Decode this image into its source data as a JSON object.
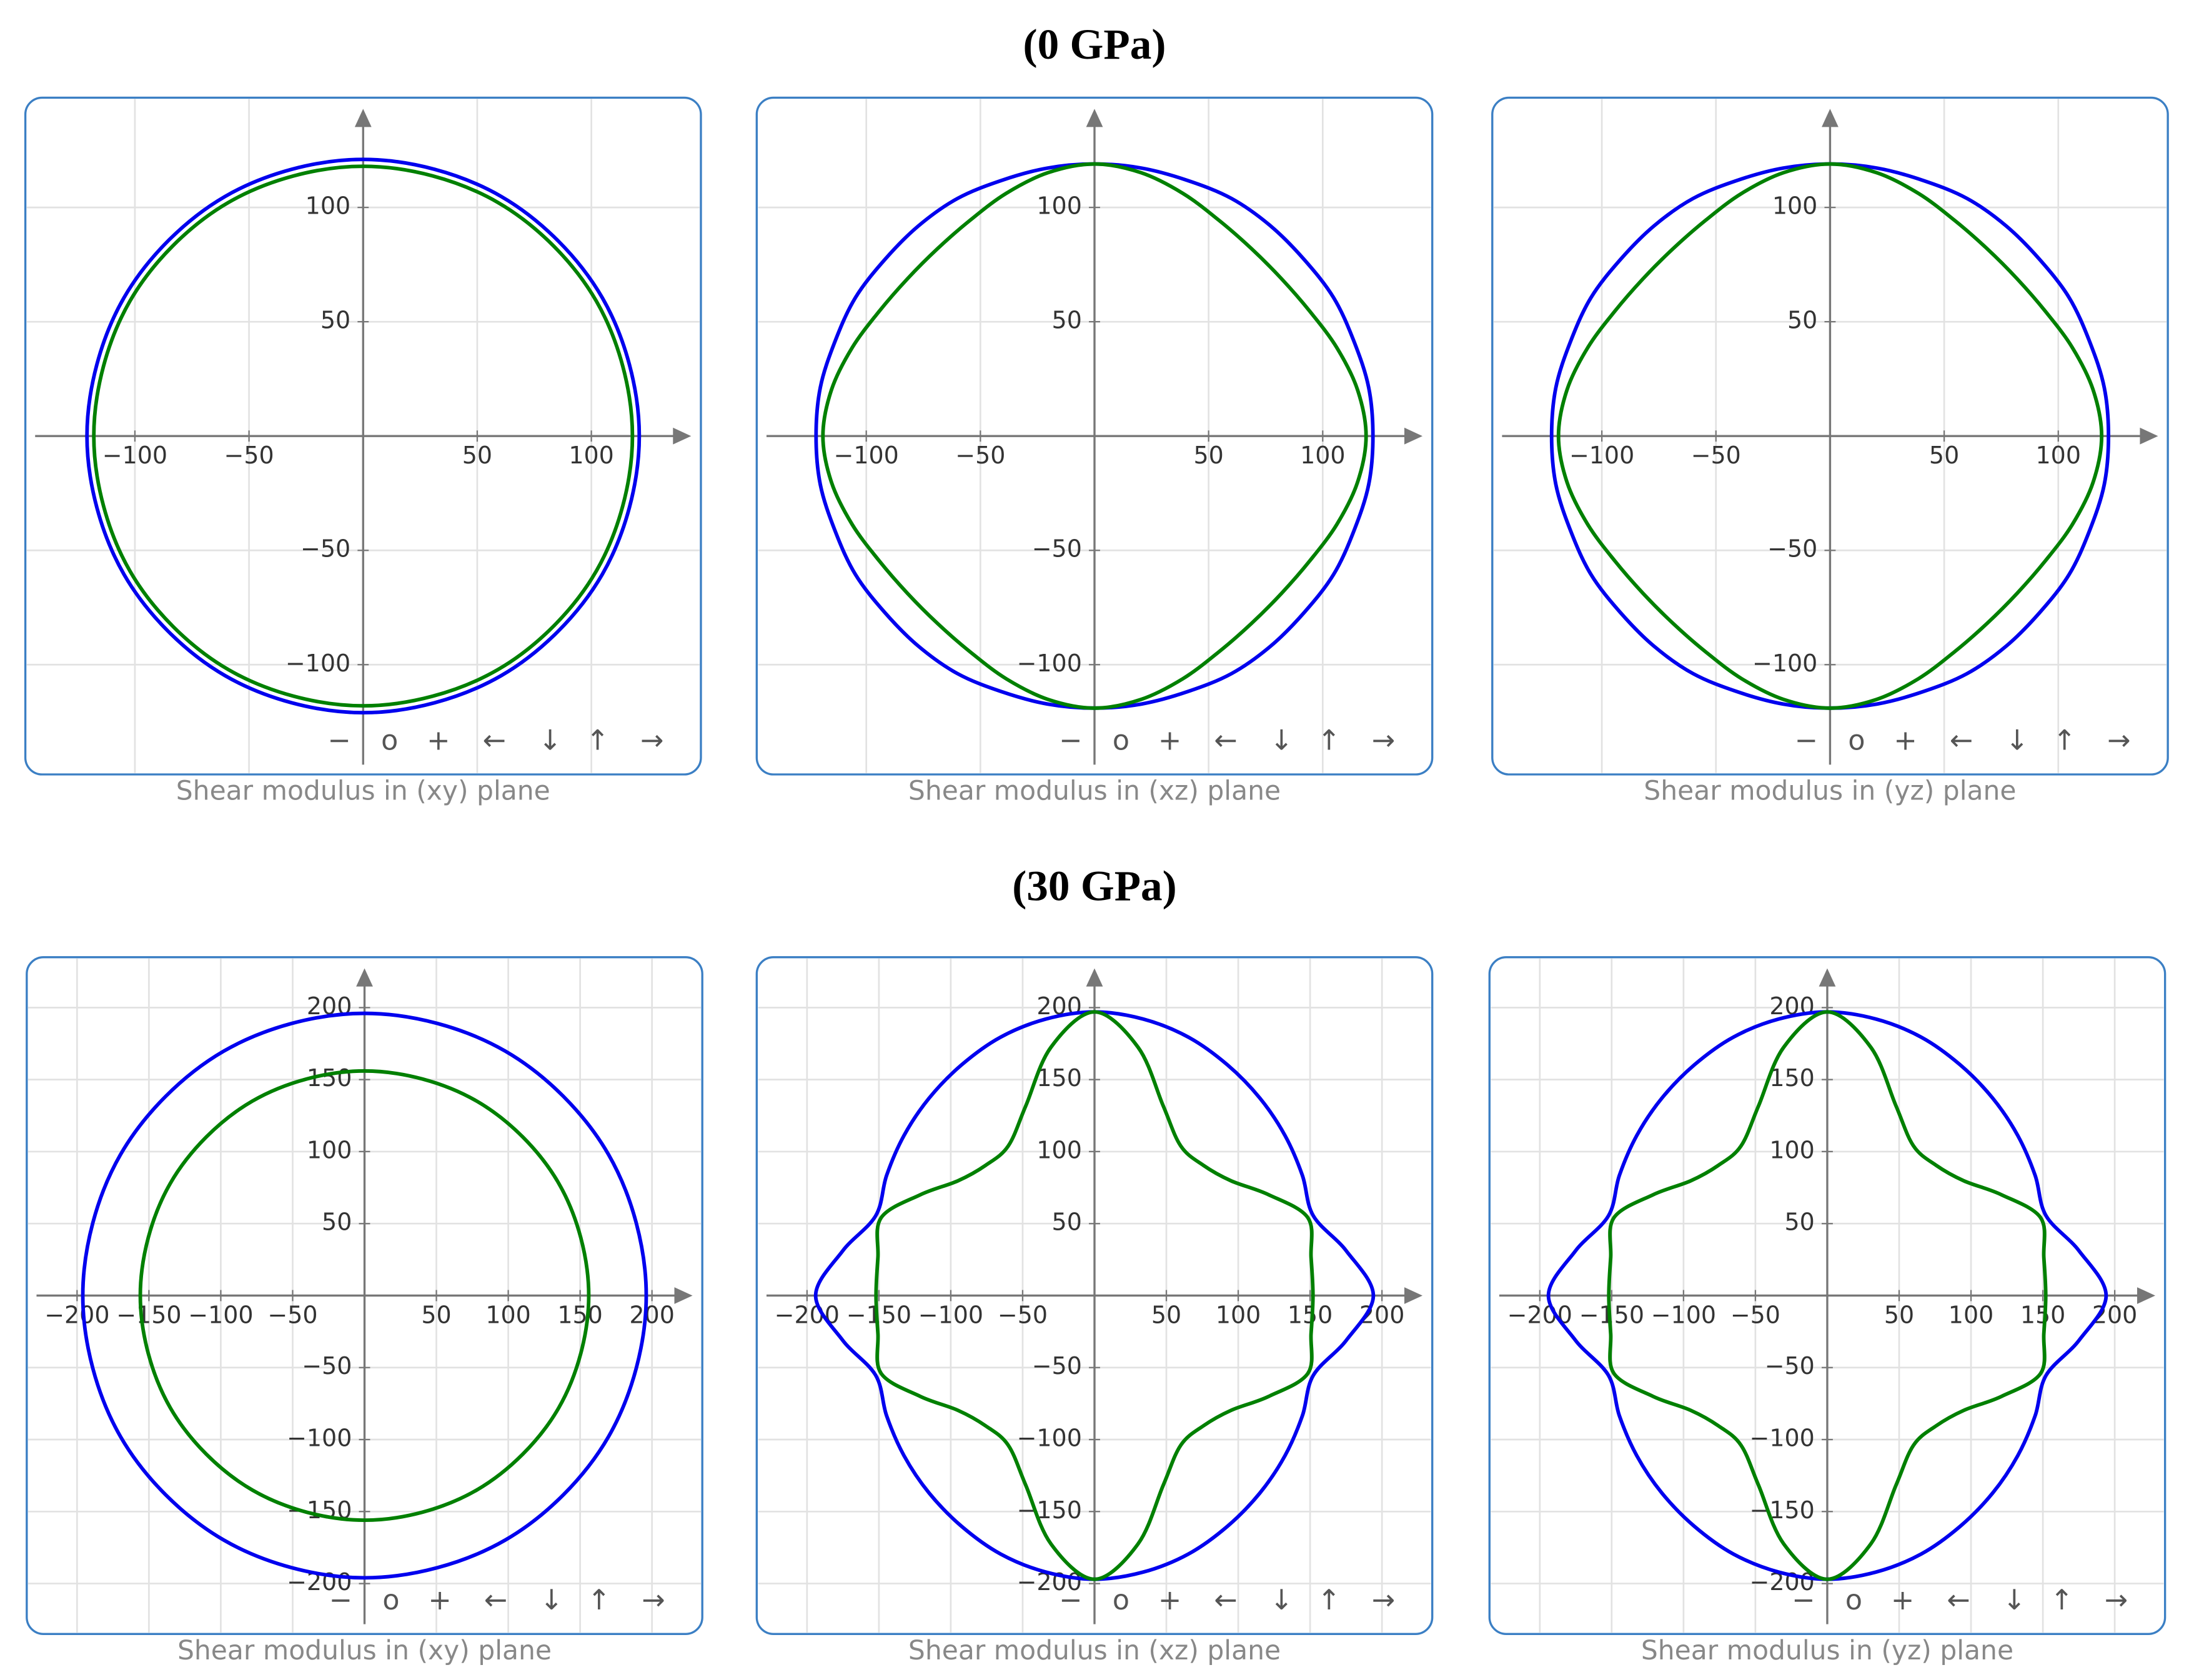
{
  "headings": [
    "(0 GPa)",
    "(30 GPa)"
  ],
  "controls": [
    "−",
    "o",
    "+",
    "←",
    "↓",
    "↑",
    "→"
  ],
  "chart_data": [
    {
      "type": "polar",
      "title": "Shear modulus in (xy) plane",
      "xlim": [
        -148,
        148
      ],
      "ylim": [
        -148,
        148
      ],
      "xticks": [
        {
          "value": -100,
          "label": "−100"
        },
        {
          "value": -50,
          "label": "−50"
        },
        50,
        100
      ],
      "yticks": [
        {
          "value": -100,
          "label": "−100"
        },
        {
          "value": -50,
          "label": "−50"
        },
        50,
        100
      ],
      "grid": true,
      "theta": [
        0,
        30,
        60,
        90,
        120,
        150,
        180,
        210,
        240,
        270,
        300,
        330
      ],
      "series": [
        {
          "color": "#0000ee",
          "values": [
            121,
            121,
            121,
            121,
            121,
            121,
            121,
            121,
            121,
            121,
            121,
            121
          ]
        },
        {
          "color": "#008000",
          "values": [
            118,
            118,
            118,
            118,
            118,
            118,
            118,
            118,
            118,
            118,
            118,
            118
          ]
        }
      ]
    },
    {
      "type": "polar",
      "title": "Shear modulus in (xz) plane",
      "xlim": [
        -148,
        148
      ],
      "ylim": [
        -148,
        148
      ],
      "xticks": [
        {
          "value": -100,
          "label": "−100"
        },
        {
          "value": -50,
          "label": "−50"
        },
        50,
        100
      ],
      "yticks": [
        {
          "value": -100,
          "label": "−100"
        },
        {
          "value": -50,
          "label": "−50"
        },
        50,
        100
      ],
      "grid": true,
      "theta": [
        0,
        10,
        20,
        30,
        40,
        50,
        60,
        70,
        80,
        90,
        100,
        110,
        120,
        130,
        140,
        150,
        160,
        170,
        180,
        190,
        200,
        210,
        220,
        230,
        240,
        250,
        260,
        270,
        280,
        290,
        300,
        310,
        320,
        330,
        340,
        350
      ],
      "series": [
        {
          "color": "#0000ee",
          "values": [
            122,
            122,
            121,
            121,
            120,
            120,
            120,
            119,
            119,
            119,
            119,
            119,
            120,
            120,
            120,
            121,
            121,
            122,
            122,
            122,
            121,
            121,
            120,
            120,
            120,
            119,
            119,
            119,
            119,
            119,
            120,
            120,
            120,
            121,
            121,
            122
          ]
        },
        {
          "color": "#008000",
          "values": [
            119,
            117,
            113,
            109,
            107,
            107,
            109,
            113,
            117,
            119,
            117,
            113,
            109,
            107,
            107,
            109,
            113,
            117,
            119,
            117,
            113,
            109,
            107,
            107,
            109,
            113,
            117,
            119,
            117,
            113,
            109,
            107,
            107,
            109,
            113,
            117
          ]
        }
      ]
    },
    {
      "type": "polar",
      "title": "Shear modulus in (yz) plane",
      "xlim": [
        -148,
        148
      ],
      "ylim": [
        -148,
        148
      ],
      "xticks": [
        {
          "value": -100,
          "label": "−100"
        },
        {
          "value": -50,
          "label": "−50"
        },
        50,
        100
      ],
      "yticks": [
        {
          "value": -100,
          "label": "−100"
        },
        {
          "value": -50,
          "label": "−50"
        },
        50,
        100
      ],
      "grid": true,
      "theta": [
        0,
        10,
        20,
        30,
        40,
        50,
        60,
        70,
        80,
        90,
        100,
        110,
        120,
        130,
        140,
        150,
        160,
        170,
        180,
        190,
        200,
        210,
        220,
        230,
        240,
        250,
        260,
        270,
        280,
        290,
        300,
        310,
        320,
        330,
        340,
        350
      ],
      "series": [
        {
          "color": "#0000ee",
          "values": [
            122,
            122,
            121,
            121,
            120,
            120,
            120,
            119,
            119,
            119,
            119,
            119,
            120,
            120,
            120,
            121,
            121,
            122,
            122,
            122,
            121,
            121,
            120,
            120,
            120,
            119,
            119,
            119,
            119,
            119,
            120,
            120,
            120,
            121,
            121,
            122
          ]
        },
        {
          "color": "#008000",
          "values": [
            119,
            117,
            113,
            109,
            107,
            107,
            109,
            113,
            117,
            119,
            117,
            113,
            109,
            107,
            107,
            109,
            113,
            117,
            119,
            117,
            113,
            109,
            107,
            107,
            109,
            113,
            117,
            119,
            117,
            113,
            109,
            107,
            107,
            109,
            113,
            117
          ]
        }
      ]
    },
    {
      "type": "polar",
      "title": "Shear modulus in (xy) plane",
      "xlim": [
        -235,
        235
      ],
      "ylim": [
        -235,
        235
      ],
      "xticks": [
        {
          "value": -200,
          "label": "−200"
        },
        {
          "value": -150,
          "label": "−150"
        },
        {
          "value": -100,
          "label": "−100"
        },
        {
          "value": -50,
          "label": "−50"
        },
        50,
        100,
        150,
        200
      ],
      "yticks": [
        {
          "value": -200,
          "label": "−200"
        },
        {
          "value": -150,
          "label": "−150"
        },
        {
          "value": -100,
          "label": "−100"
        },
        {
          "value": -50,
          "label": "−50"
        },
        50,
        100,
        150,
        200
      ],
      "grid": true,
      "theta": [
        0,
        30,
        60,
        90,
        120,
        150,
        180,
        210,
        240,
        270,
        300,
        330
      ],
      "series": [
        {
          "color": "#0000ee",
          "values": [
            196,
            196,
            196,
            196,
            196,
            196,
            196,
            196,
            196,
            196,
            196,
            196
          ]
        },
        {
          "color": "#008000",
          "values": [
            156,
            156,
            156,
            156,
            156,
            156,
            156,
            156,
            156,
            156,
            156,
            156
          ]
        }
      ]
    },
    {
      "type": "polar",
      "title": "Shear modulus in (xz) plane",
      "xlim": [
        -235,
        235
      ],
      "ylim": [
        -235,
        235
      ],
      "xticks": [
        {
          "value": -200,
          "label": "−200"
        },
        {
          "value": -150,
          "label": "−150"
        },
        {
          "value": -100,
          "label": "−100"
        },
        {
          "value": -50,
          "label": "−50"
        },
        50,
        100,
        150,
        200
      ],
      "yticks": [
        {
          "value": -200,
          "label": "−200"
        },
        {
          "value": -150,
          "label": "−150"
        },
        {
          "value": -100,
          "label": "−100"
        },
        {
          "value": -50,
          "label": "−50"
        },
        50,
        100,
        150,
        200
      ],
      "grid": true,
      "theta": [
        0,
        10,
        20,
        30,
        40,
        50,
        60,
        70,
        80,
        90,
        100,
        110,
        120,
        130,
        140,
        150,
        160,
        170,
        180,
        190,
        200,
        210,
        220,
        230,
        240,
        250,
        260,
        270,
        280,
        290,
        300,
        310,
        320,
        330,
        340,
        350
      ],
      "series": [
        {
          "color": "#0000ee",
          "values": [
            194,
            178,
            162,
            167,
            173,
            179,
            185,
            191,
            195,
            197,
            195,
            191,
            185,
            179,
            173,
            167,
            162,
            178,
            194,
            178,
            162,
            167,
            173,
            179,
            185,
            191,
            195,
            197,
            195,
            191,
            185,
            179,
            173,
            167,
            162,
            178
          ]
        },
        {
          "color": "#008000",
          "values": [
            152,
            153,
            158,
            140,
            124,
            118,
            120,
            140,
            175,
            197,
            175,
            140,
            120,
            118,
            124,
            140,
            158,
            153,
            152,
            153,
            158,
            140,
            124,
            118,
            120,
            140,
            175,
            197,
            175,
            140,
            120,
            118,
            124,
            140,
            158,
            153
          ]
        }
      ]
    },
    {
      "type": "polar",
      "title": "Shear modulus in (yz) plane",
      "xlim": [
        -235,
        235
      ],
      "ylim": [
        -235,
        235
      ],
      "xticks": [
        {
          "value": -200,
          "label": "−200"
        },
        {
          "value": -150,
          "label": "−150"
        },
        {
          "value": -100,
          "label": "−100"
        },
        {
          "value": -50,
          "label": "−50"
        },
        50,
        100,
        150,
        200
      ],
      "yticks": [
        {
          "value": -200,
          "label": "−200"
        },
        {
          "value": -150,
          "label": "−150"
        },
        {
          "value": -100,
          "label": "−100"
        },
        {
          "value": -50,
          "label": "−50"
        },
        50,
        100,
        150,
        200
      ],
      "grid": true,
      "theta": [
        0,
        10,
        20,
        30,
        40,
        50,
        60,
        70,
        80,
        90,
        100,
        110,
        120,
        130,
        140,
        150,
        160,
        170,
        180,
        190,
        200,
        210,
        220,
        230,
        240,
        250,
        260,
        270,
        280,
        290,
        300,
        310,
        320,
        330,
        340,
        350
      ],
      "series": [
        {
          "color": "#0000ee",
          "values": [
            194,
            178,
            162,
            167,
            173,
            179,
            185,
            191,
            195,
            197,
            195,
            191,
            185,
            179,
            173,
            167,
            162,
            178,
            194,
            178,
            162,
            167,
            173,
            179,
            185,
            191,
            195,
            197,
            195,
            191,
            185,
            179,
            173,
            167,
            162,
            178
          ]
        },
        {
          "color": "#008000",
          "values": [
            152,
            153,
            158,
            140,
            124,
            118,
            120,
            140,
            175,
            197,
            175,
            140,
            120,
            118,
            124,
            140,
            158,
            153,
            152,
            153,
            158,
            140,
            124,
            118,
            120,
            140,
            175,
            197,
            175,
            140,
            120,
            118,
            124,
            140,
            158,
            153
          ]
        }
      ]
    }
  ]
}
